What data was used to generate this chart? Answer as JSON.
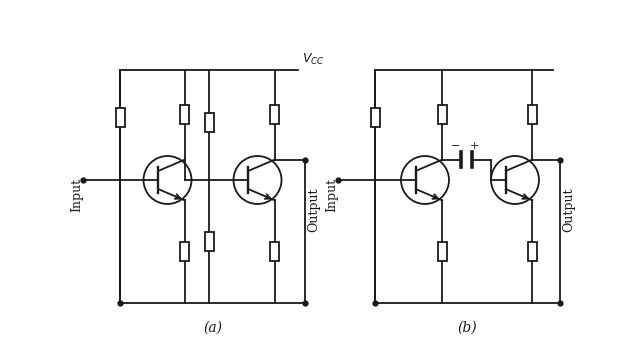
{
  "bg_color": "#ffffff",
  "line_color": "#1a1a1a",
  "label_a": "(a)",
  "label_b": "(b)",
  "vcc_label": "$V_{CC}$",
  "input_label": "Input",
  "output_label": "Output"
}
